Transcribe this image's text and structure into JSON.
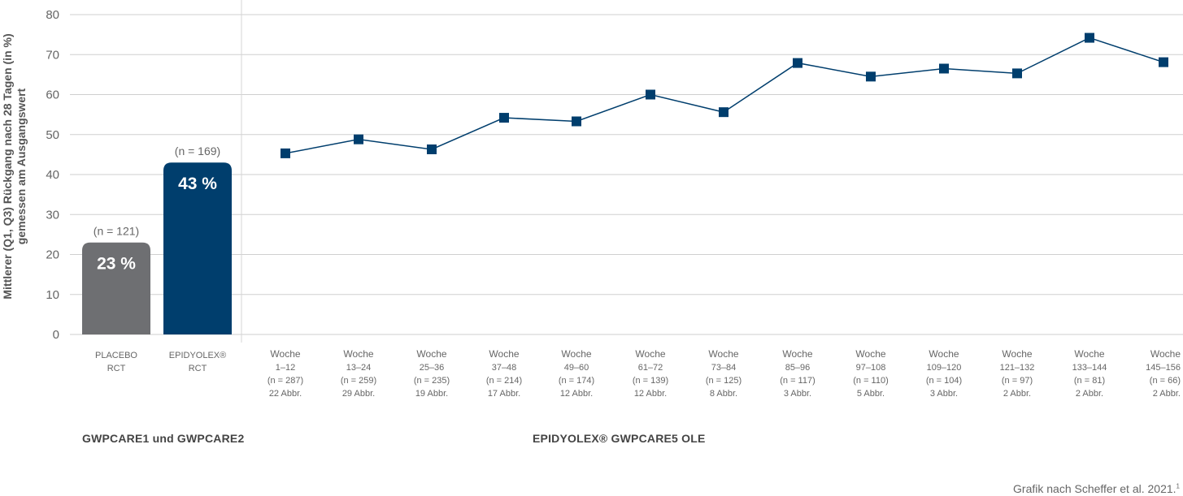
{
  "chart_data": {
    "type": "bar+line",
    "ylabel_line1": "Mittlerer (Q1, Q3) Rückgang nach 28 Tagen (in %)",
    "ylabel_line2": "gemessen am Ausgangswert",
    "ylim": [
      0,
      80
    ],
    "yticks": [
      "0",
      "10",
      "20",
      "30",
      "40",
      "50",
      "60",
      "70",
      "80"
    ],
    "grid": true,
    "bars": [
      {
        "label_lines": [
          "PLACEBO",
          "RCT"
        ],
        "value": 23,
        "value_label": "23 %",
        "n_label": "(n = 121)",
        "color": "#6e6f72"
      },
      {
        "label_lines": [
          "EPIDYOLEX®",
          "RCT"
        ],
        "value": 43,
        "value_label": "43 %",
        "n_label": "(n = 169)",
        "color": "#003e6d"
      }
    ],
    "series": [
      {
        "color": "#003e6d",
        "points": [
          {
            "label_lines": [
              "Woche",
              "1–12",
              "(n = 287)",
              "22 Abbr."
            ],
            "value": 45.3
          },
          {
            "label_lines": [
              "Woche",
              "13–24",
              "(n = 259)",
              "29 Abbr."
            ],
            "value": 48.8
          },
          {
            "label_lines": [
              "Woche",
              "25–36",
              "(n = 235)",
              "19 Abbr."
            ],
            "value": 46.3
          },
          {
            "label_lines": [
              "Woche",
              "37–48",
              "(n = 214)",
              "17 Abbr."
            ],
            "value": 54.2
          },
          {
            "label_lines": [
              "Woche",
              "49–60",
              "(n = 174)",
              "12 Abbr."
            ],
            "value": 53.3
          },
          {
            "label_lines": [
              "Woche",
              "61–72",
              "(n = 139)",
              "12 Abbr."
            ],
            "value": 60.0
          },
          {
            "label_lines": [
              "Woche",
              "73–84",
              "(n = 125)",
              "8 Abbr."
            ],
            "value": 55.6
          },
          {
            "label_lines": [
              "Woche",
              "85–96",
              "(n = 117)",
              "3 Abbr."
            ],
            "value": 67.9
          },
          {
            "label_lines": [
              "Woche",
              "97–108",
              "(n = 110)",
              "5 Abbr."
            ],
            "value": 64.5
          },
          {
            "label_lines": [
              "Woche",
              "109–120",
              "(n = 104)",
              "3 Abbr."
            ],
            "value": 66.5
          },
          {
            "label_lines": [
              "Woche",
              "121–132",
              "(n = 97)",
              "2 Abbr."
            ],
            "value": 65.3
          },
          {
            "label_lines": [
              "Woche",
              "133–144",
              "(n = 81)",
              "2 Abbr."
            ],
            "value": 74.2
          },
          {
            "label_lines": [
              "Woche",
              "145–156",
              "(n = 66)",
              "2 Abbr."
            ],
            "value": 68.1
          }
        ]
      }
    ],
    "group_labels": {
      "left": "GWPCARE1 und GWPCARE2",
      "right": "EPIDYOLEX® GWPCARE5 OLE"
    }
  },
  "footer": {
    "source_text": "Grafik nach Scheffer et al. 2021.",
    "source_ref": "1"
  }
}
